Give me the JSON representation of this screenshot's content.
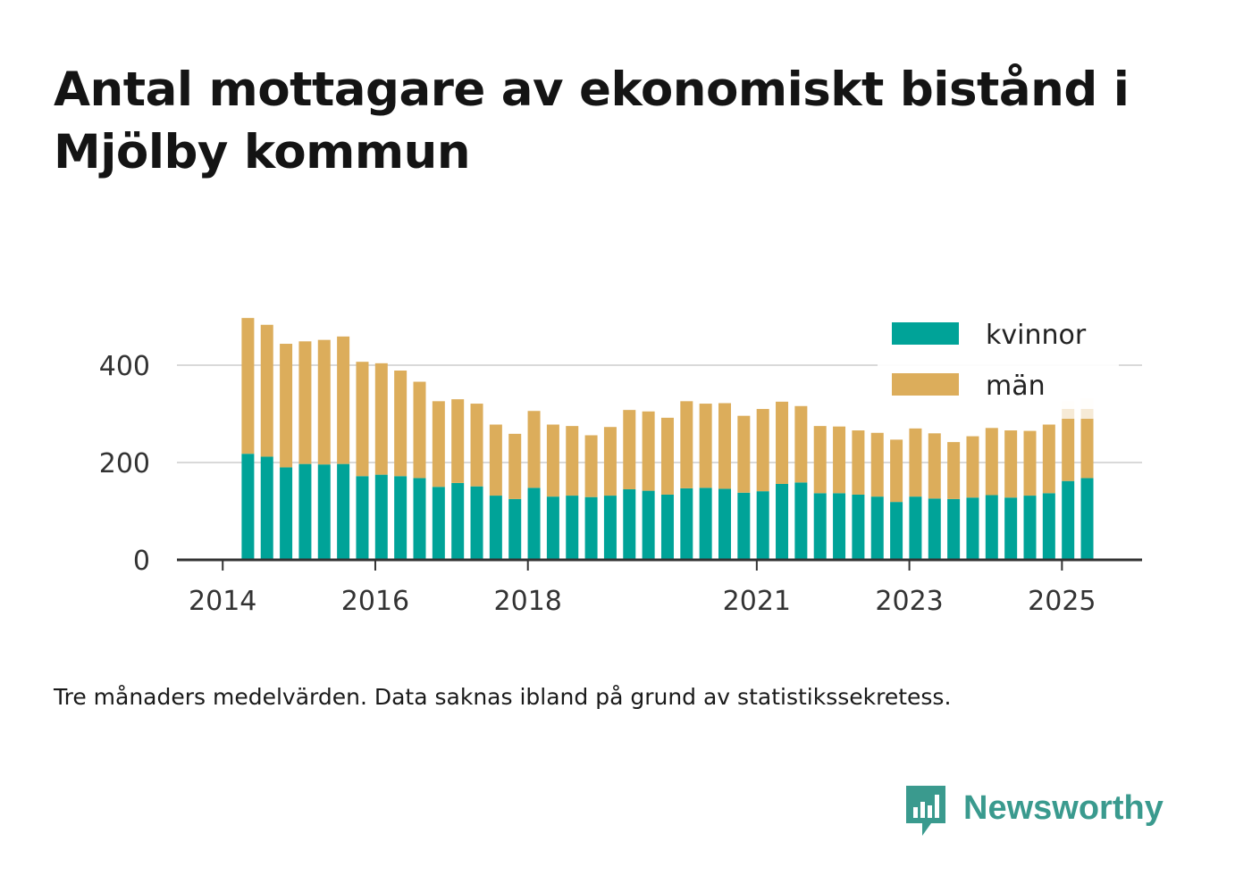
{
  "title": "Antal mottagare av ekonomiskt bistånd i Mjölby kommun",
  "footnote": "Tre månaders medelvärden. Data saknas ibland på grund av statistikssekretess.",
  "logo": {
    "text": "Newsworthy",
    "icon": "newsworthy-chart-icon",
    "color": "#3a9a8e"
  },
  "colors": {
    "kvinnor": "#00a398",
    "man": "#dcad5b",
    "man_preliminary": "#f6ead6",
    "grid": "#d9d9d9",
    "axis": "#333333"
  },
  "chart_data": {
    "type": "bar",
    "stacked": true,
    "x_ticks": [
      "2014",
      "2016",
      "2018",
      "2021",
      "2023",
      "2025"
    ],
    "x_tick_positions": [
      2014.0,
      2016.0,
      2018.0,
      2021.0,
      2023.0,
      2025.0
    ],
    "y_ticks": [
      "0",
      "200",
      "400"
    ],
    "ylim": [
      0,
      500
    ],
    "xlim": [
      2013.4,
      2026.05
    ],
    "grid": true,
    "legend": {
      "placement": "top-right",
      "entries": [
        "kvinnor",
        "män"
      ]
    },
    "x": [
      2014.33,
      2014.58,
      2014.83,
      2015.08,
      2015.33,
      2015.58,
      2015.83,
      2016.08,
      2016.33,
      2016.58,
      2016.83,
      2017.08,
      2017.33,
      2017.58,
      2017.83,
      2018.08,
      2018.33,
      2018.58,
      2018.83,
      2019.08,
      2019.33,
      2019.58,
      2019.83,
      2020.08,
      2020.33,
      2020.58,
      2020.83,
      2021.08,
      2021.33,
      2021.58,
      2021.83,
      2022.08,
      2022.33,
      2022.58,
      2022.83,
      2023.08,
      2023.33,
      2023.58,
      2023.83,
      2024.08,
      2024.33,
      2024.58,
      2024.83,
      2025.08,
      2025.33
    ],
    "series": [
      {
        "name": "kvinnor",
        "values": [
          218,
          212,
          190,
          197,
          196,
          197,
          172,
          175,
          172,
          168,
          150,
          158,
          151,
          132,
          125,
          148,
          130,
          132,
          129,
          132,
          145,
          142,
          134,
          147,
          148,
          146,
          138,
          141,
          156,
          159,
          137,
          137,
          134,
          130,
          119,
          130,
          126,
          125,
          128,
          133,
          128,
          132,
          137,
          162,
          168
        ]
      },
      {
        "name": "män",
        "values": [
          279,
          271,
          254,
          252,
          256,
          262,
          235,
          229,
          217,
          198,
          176,
          172,
          170,
          146,
          134,
          158,
          148,
          143,
          127,
          141,
          163,
          163,
          158,
          179,
          173,
          176,
          158,
          169,
          169,
          157,
          138,
          137,
          132,
          131,
          128,
          140,
          134,
          117,
          126,
          138,
          138,
          133,
          141,
          128,
          122
        ]
      }
    ],
    "preliminary_extra": [
      0,
      0,
      0,
      0,
      0,
      0,
      0,
      0,
      0,
      0,
      0,
      0,
      0,
      0,
      0,
      0,
      0,
      0,
      0,
      0,
      0,
      0,
      0,
      0,
      0,
      0,
      0,
      0,
      0,
      0,
      0,
      0,
      0,
      0,
      0,
      0,
      0,
      0,
      0,
      0,
      0,
      0,
      0,
      36,
      42
    ]
  }
}
